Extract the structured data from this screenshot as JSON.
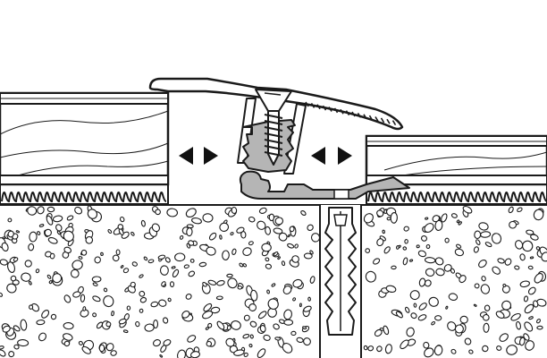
{
  "colors": {
    "line": "#1a1a1a",
    "fill": "#ffffff",
    "shade": "#b5b5b5",
    "arrow": "#111111"
  },
  "icons": {
    "movement_arrow_left": "double-headed-arrow-icon",
    "movement_arrow_right": "double-headed-arrow-icon"
  },
  "components": [
    "left-floor-board",
    "right-floor-board",
    "underlay",
    "concrete-subfloor",
    "transition-profile",
    "base-rail",
    "screw",
    "wall-plug"
  ]
}
